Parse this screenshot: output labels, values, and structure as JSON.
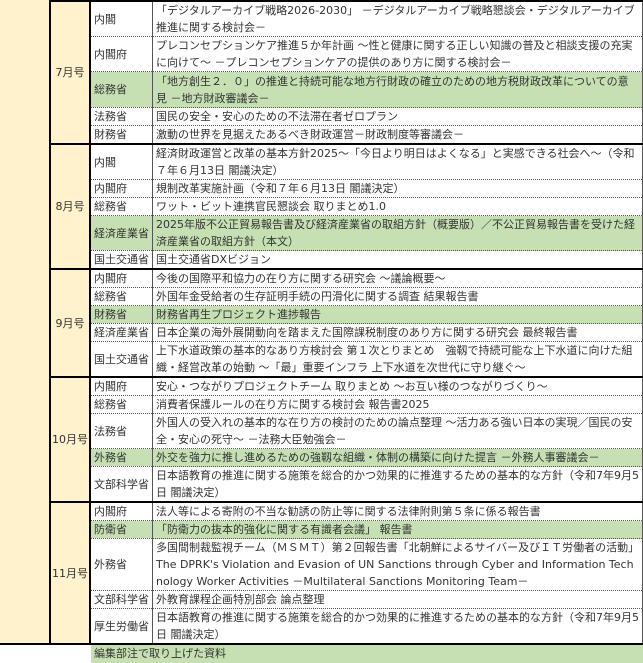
{
  "months": [
    {
      "label": "7月号",
      "rows": [
        {
          "ministry": "内閣",
          "text": "「デジタルアーカイブ戦略2026-2030」 －デジタルアーカイブ戦略懇談会・デジタルアーカイブ推進に関する検討会－",
          "highlight": false
        },
        {
          "ministry": "内閣府",
          "text": "プレコンセプションケア推進５か年計画 ～性と健康に関する正しい知識の普及と相談支援の充実に向けて～ －プレコンセプションケアの提供のあり方に関する検討会－",
          "highlight": false
        },
        {
          "ministry": "総務省",
          "text": "「地方創生２．０」の推進と持続可能な地方行財政の確立のための地方税財政改革についての意見 －地方財政審議会－",
          "highlight": true
        },
        {
          "ministry": "法務省",
          "text": "国民の安全・安心のための不法滞在者ゼロプラン",
          "highlight": false
        },
        {
          "ministry": "財務省",
          "text": "激動の世界を見据えたあるべき財政運営－財政制度等審議会－",
          "highlight": false
        }
      ]
    },
    {
      "label": "8月号",
      "rows": [
        {
          "ministry": "内閣",
          "text": "経済財政運営と改革の基本方針2025～「今日より明日はよくなる」と実感できる社会へ～（令和７年６月13日 閣議決定）",
          "highlight": false
        },
        {
          "ministry": "内閣府",
          "text": "規制改革実施計画（令和７年６月13日 閣議決定）",
          "highlight": false
        },
        {
          "ministry": "総務省",
          "text": "ワット・ビット連携官民懇談会 取りまとめ1.0",
          "highlight": false
        },
        {
          "ministry": "経済産業省",
          "text": "2025年版不公正貿易報告書及び経済産業省の取組方針（概要版）／不公正貿易報告書を受けた経済産業省の取組方針（本文）",
          "highlight": true
        },
        {
          "ministry": "国土交通省",
          "text": "国土交通省DXビジョン",
          "highlight": false
        }
      ]
    },
    {
      "label": "9月号",
      "rows": [
        {
          "ministry": "内閣府",
          "text": "今後の国際平和協力の在り方に関する研究会 ～議論概要～",
          "highlight": false
        },
        {
          "ministry": "総務省",
          "text": "外国年金受給者の生存証明手続の円滑化に関する調査 結果報告書",
          "highlight": false
        },
        {
          "ministry": "財務省",
          "text": "財務省再生プロジェクト進捗報告",
          "highlight": true
        },
        {
          "ministry": "経済産業省",
          "text": "日本企業の海外展開動向を踏まえた国際課税制度のあり方に関する研究会 最終報告書",
          "highlight": false
        },
        {
          "ministry": "国土交通省",
          "text": "上下水道政策の基本的なあり方検討会 第１次とりまとめ　強靱で持続可能な上下水道に向けた組織・経営改革の始動 ～「最」重要インフラ 上下水道を次世代に守り継ぐ～",
          "highlight": false
        }
      ]
    },
    {
      "label": "10月号",
      "rows": [
        {
          "ministry": "内閣府",
          "text": "安心・つながりプロジェクトチーム 取りまとめ ～お互い様のつながりづくり～",
          "highlight": false
        },
        {
          "ministry": "総務省",
          "text": "消費者保護ルールの在り方に関する検討会 報告書2025",
          "highlight": false
        },
        {
          "ministry": "法務省",
          "text": "外国人の受入れの基本的な在り方の検討のための論点整理 ～活力ある強い日本の実現／国民の安全・安心の死守～ －法務大臣勉強会－",
          "highlight": false
        },
        {
          "ministry": "外務省",
          "text": "外交を強力に推し進めるための強靱な組織・体制の構築に向けた提言 －外務人事審議会－",
          "highlight": true
        },
        {
          "ministry": "文部科学省",
          "text": "日本語教育の推進に関する施策を総合的かつ効果的に推進するための基本的な方針（令和7年9月5日 閣議決定）",
          "highlight": false
        }
      ]
    },
    {
      "label": "11月号",
      "rows": [
        {
          "ministry": "内閣府",
          "text": "法人等による寄附の不当な勧誘の防止等に関する法律附則第５条に係る報告書",
          "highlight": false
        },
        {
          "ministry": "防衛省",
          "text": "「防衛力の抜本的強化に関する有識者会議」 報告書",
          "highlight": true
        },
        {
          "ministry": "外務省",
          "text": "多国間制裁監視チーム（ＭＳＭＴ）第２回報告書「北朝鮮によるサイバー及びＩＴ労働者の活動」The DPRK's Violation and Evasion of UN Sanctions through Cyber and Information Technology Worker Activities －Multilateral Sanctions Monitoring Team－",
          "highlight": false
        },
        {
          "ministry": "文部科学省",
          "text": "外教育課程企画特別部会 論点整理",
          "highlight": false
        },
        {
          "ministry": "厚生労働省",
          "text": "日本語教育の推進に関する施策を総合的かつ効果的に推進するための基本的な方針（令和7年9月5日 閣議決定）",
          "highlight": false
        }
      ]
    }
  ],
  "legend_note": "編集部注で取り上げた資料",
  "colors": {
    "month_bg": "#fff2cc",
    "highlight": "#c6e0b4"
  }
}
